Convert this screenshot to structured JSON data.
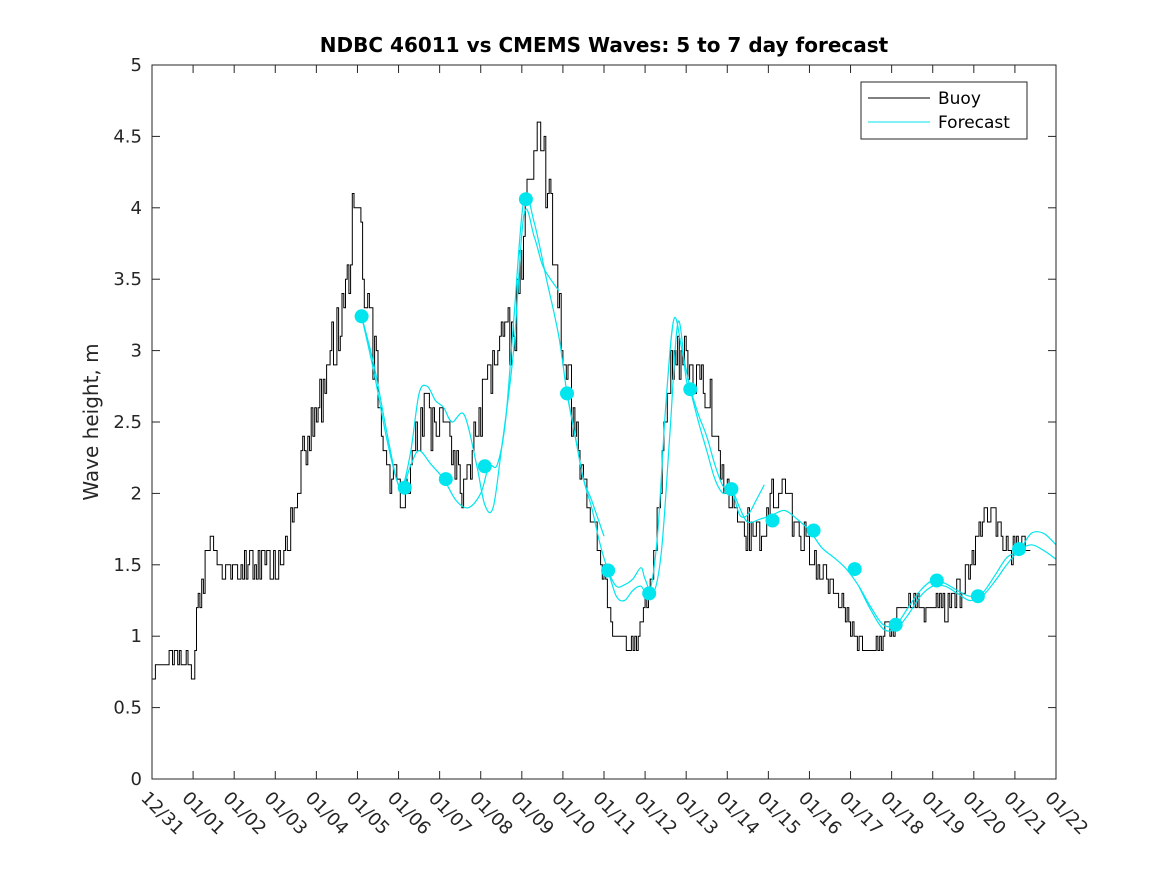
{
  "chart_data": {
    "type": "line",
    "title": "NDBC 46011 vs CMEMS Waves: 5 to 7 day forecast",
    "xlabel": "",
    "ylabel": "Wave height, m",
    "xlim": [
      0,
      22
    ],
    "ylim": [
      0,
      5
    ],
    "x_tick_labels": [
      "12/31",
      "01/01",
      "01/02",
      "01/03",
      "01/04",
      "01/05",
      "01/06",
      "01/07",
      "01/08",
      "01/09",
      "01/10",
      "01/11",
      "01/12",
      "01/13",
      "01/14",
      "01/15",
      "01/16",
      "01/17",
      "01/18",
      "01/19",
      "01/20",
      "01/21",
      "01/22"
    ],
    "y_tick_labels": [
      "0",
      "0.5",
      "1",
      "1.5",
      "2",
      "2.5",
      "3",
      "3.5",
      "4",
      "4.5",
      "5"
    ],
    "legend": {
      "position": "top-right",
      "entries": [
        "Buoy",
        "Forecast"
      ]
    },
    "colors": {
      "buoy": "#000000",
      "forecast": "#00e5ee",
      "axis": "#262626"
    },
    "series": [
      {
        "name": "Buoy",
        "x": [
          0,
          0.3,
          0.6,
          0.9,
          1.0,
          1.1,
          1.3,
          1.5,
          1.7,
          1.9,
          2.2,
          2.5,
          2.8,
          3.0,
          3.2,
          3.4,
          3.6,
          3.8,
          4.0,
          4.2,
          4.4,
          4.6,
          4.8,
          4.9,
          5.0,
          5.1,
          5.2,
          5.4,
          5.6,
          5.8,
          6.0,
          6.2,
          6.4,
          6.6,
          6.8,
          7.0,
          7.2,
          7.4,
          7.6,
          7.8,
          8.0,
          8.2,
          8.4,
          8.6,
          8.8,
          9.0,
          9.2,
          9.4,
          9.6,
          9.8,
          10.0,
          10.2,
          10.4,
          10.6,
          10.8,
          11.0,
          11.2,
          11.4,
          11.6,
          11.8,
          12.0,
          12.2,
          12.4,
          12.6,
          12.8,
          13.0,
          13.2,
          13.4,
          13.6,
          13.8,
          14.0,
          14.2,
          14.4,
          14.6,
          14.8,
          15.0,
          15.2,
          15.4,
          15.6,
          15.8,
          16.0,
          16.2,
          16.4,
          16.6,
          16.8,
          17.0,
          17.2,
          17.4,
          17.6,
          17.8,
          18.0,
          18.2,
          18.4,
          18.6,
          18.8,
          19.0,
          19.2,
          19.4,
          19.6,
          19.8,
          20.0,
          20.2,
          20.4,
          20.6,
          20.8,
          21.0,
          21.2,
          21.4
        ],
        "values": [
          0.7,
          0.8,
          0.85,
          0.8,
          0.7,
          1.2,
          1.5,
          1.7,
          1.45,
          1.4,
          1.5,
          1.45,
          1.5,
          1.5,
          1.6,
          1.8,
          2.1,
          2.4,
          2.5,
          2.8,
          3.0,
          3.2,
          3.6,
          3.9,
          4.2,
          3.8,
          3.4,
          3.0,
          2.4,
          2.1,
          2.0,
          2.0,
          2.3,
          2.6,
          2.5,
          2.6,
          2.4,
          2.2,
          2.0,
          2.3,
          2.6,
          2.8,
          3.0,
          3.0,
          3.2,
          3.6,
          4.2,
          4.6,
          4.2,
          3.6,
          3.0,
          2.6,
          2.3,
          2.0,
          1.7,
          1.4,
          1.1,
          0.9,
          0.9,
          1.0,
          1.2,
          1.6,
          2.2,
          2.8,
          3.0,
          2.9,
          2.7,
          2.8,
          2.6,
          2.3,
          2.0,
          1.8,
          1.7,
          1.8,
          1.7,
          1.9,
          2.0,
          2.0,
          1.8,
          1.7,
          1.6,
          1.5,
          1.4,
          1.3,
          1.2,
          1.05,
          0.95,
          0.9,
          0.95,
          1.0,
          1.1,
          1.2,
          1.3,
          1.3,
          1.2,
          1.2,
          1.25,
          1.2,
          1.3,
          1.4,
          1.6,
          1.8,
          1.9,
          1.7,
          1.65,
          1.6,
          1.6,
          1.55
        ]
      },
      {
        "name": "Forecast",
        "segments": [
          {
            "x": [
              5.1,
              5.4,
              5.7,
              5.95,
              6.1,
              6.3,
              6.5,
              6.7,
              6.9,
              7.1,
              7.3,
              7.6,
              7.9,
              8.1,
              8.3,
              8.5,
              8.8,
              9.05,
              9.3,
              9.5,
              9.7,
              9.9
            ],
            "values": [
              3.24,
              2.9,
              2.45,
              2.1,
              2.05,
              2.3,
              2.7,
              2.75,
              2.65,
              2.6,
              2.5,
              2.55,
              2.2,
              1.92,
              1.9,
              2.3,
              3.0,
              3.95,
              3.8,
              3.6,
              3.5,
              3.42
            ]
          },
          {
            "x": [
              5.1,
              5.4,
              5.7,
              5.95,
              6.1,
              6.3,
              6.5,
              6.8,
              7.1,
              7.4,
              7.7,
              8.0,
              8.2,
              8.4,
              8.6,
              8.8,
              9.05,
              9.3,
              9.6,
              9.9,
              10.1,
              10.3,
              10.5,
              10.7,
              11.0
            ],
            "values": [
              3.24,
              2.85,
              2.4,
              2.1,
              2.04,
              2.2,
              2.3,
              2.2,
              2.1,
              1.95,
              1.9,
              2.0,
              2.19,
              2.2,
              2.5,
              3.2,
              4.06,
              3.9,
              3.5,
              3.1,
              2.7,
              2.4,
              2.1,
              1.95,
              1.7
            ]
          },
          {
            "x": [
              10.1,
              10.3,
              10.5,
              10.7,
              10.9,
              11.1,
              11.3,
              11.5,
              11.7,
              11.9,
              12.0,
              12.2,
              12.4,
              12.6,
              12.8,
              13.0,
              13.1,
              13.3,
              13.5,
              13.7,
              13.9,
              14.1,
              14.3,
              14.5,
              14.7,
              14.9
            ],
            "values": [
              2.7,
              2.4,
              2.1,
              1.9,
              1.65,
              1.46,
              1.35,
              1.36,
              1.4,
              1.48,
              1.4,
              1.3,
              1.6,
              2.4,
              3.2,
              2.8,
              2.73,
              2.55,
              2.4,
              2.2,
              2.05,
              2.03,
              1.85,
              1.85,
              1.95,
              2.06
            ]
          },
          {
            "x": [
              11.1,
              11.3,
              11.5,
              11.7,
              11.9,
              12.1,
              12.3,
              12.5,
              12.7,
              12.9,
              13.1,
              13.3,
              13.5,
              13.7,
              13.9,
              14.1,
              14.3,
              14.5,
              14.8,
              15.1,
              15.4,
              15.7,
              16.0,
              16.3,
              16.6,
              16.9,
              17.2,
              17.5,
              17.8,
              18.1,
              18.4,
              18.7,
              19.0,
              19.3,
              19.6,
              19.9,
              20.2,
              20.5,
              20.8,
              21.1,
              21.4,
              21.7,
              22.0
            ],
            "values": [
              1.46,
              1.28,
              1.25,
              1.32,
              1.35,
              1.3,
              1.7,
              2.6,
              3.22,
              3.0,
              2.73,
              2.5,
              2.3,
              2.1,
              2.0,
              2.03,
              1.9,
              1.8,
              1.82,
              1.85,
              1.88,
              1.82,
              1.74,
              1.62,
              1.55,
              1.47,
              1.35,
              1.2,
              1.08,
              1.08,
              1.2,
              1.32,
              1.39,
              1.37,
              1.32,
              1.28,
              1.3,
              1.42,
              1.55,
              1.6,
              1.72,
              1.72,
              1.64
            ]
          },
          {
            "x": [
              17.2,
              17.5,
              17.8,
              18.1,
              18.4,
              18.7,
              19.0,
              19.3,
              19.6,
              19.9,
              20.2,
              20.5,
              20.8,
              21.1,
              21.4,
              21.7,
              22.0
            ],
            "values": [
              1.35,
              1.18,
              1.05,
              1.05,
              1.15,
              1.28,
              1.35,
              1.35,
              1.3,
              1.25,
              1.28,
              1.38,
              1.5,
              1.6,
              1.64,
              1.6,
              1.54
            ]
          }
        ],
        "markers": {
          "x": [
            5.1,
            6.15,
            7.15,
            8.1,
            9.1,
            10.1,
            11.1,
            12.1,
            13.1,
            14.1,
            15.1,
            16.1,
            17.1,
            18.1,
            19.1,
            20.1,
            21.1
          ],
          "values": [
            3.24,
            2.04,
            2.1,
            2.19,
            4.06,
            2.7,
            1.46,
            1.3,
            2.73,
            2.03,
            1.81,
            1.74,
            1.47,
            1.08,
            1.39,
            1.28,
            1.61
          ]
        }
      }
    ]
  }
}
